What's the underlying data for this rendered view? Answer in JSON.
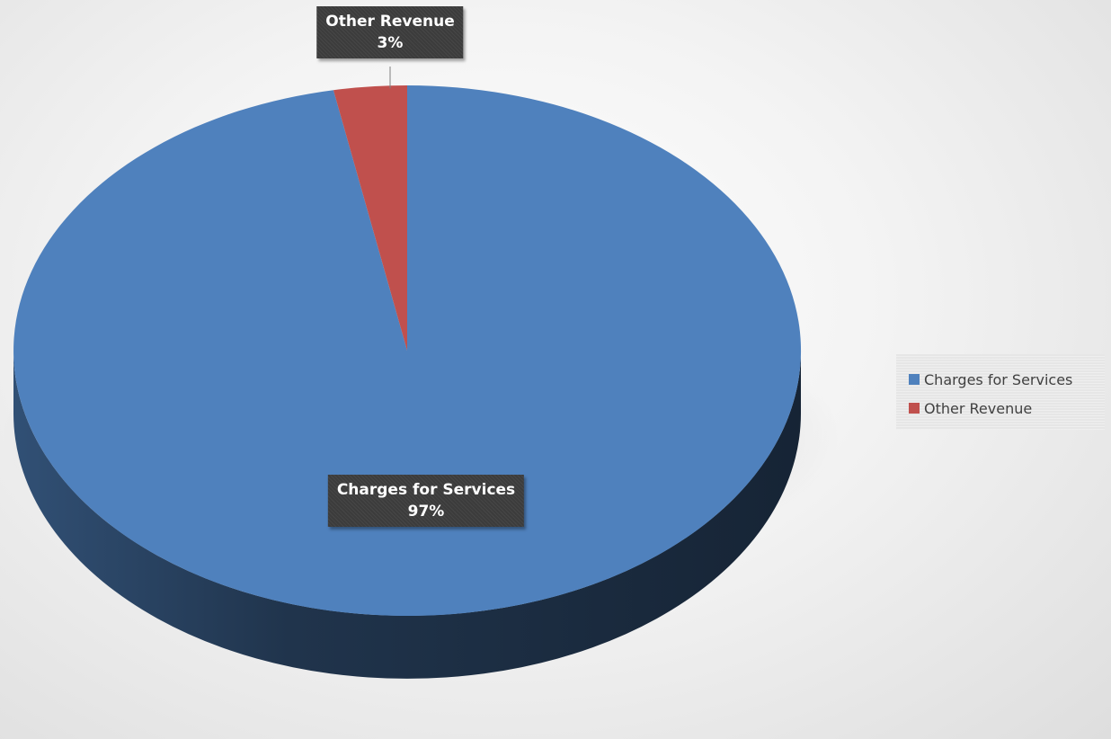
{
  "chart_data": {
    "type": "pie",
    "title": "",
    "slices": [
      {
        "name": "Charges for Services",
        "value": 97,
        "label": "97%",
        "color": "#4f81bd"
      },
      {
        "name": "Other Revenue",
        "value": 3,
        "label": "3%",
        "color": "#c0504d"
      }
    ],
    "style": "3d",
    "legend_position": "right",
    "data_labels": true
  },
  "legend": {
    "items": [
      {
        "label": "Charges for Services",
        "color": "#4f81bd"
      },
      {
        "label": "Other Revenue",
        "color": "#c0504d"
      }
    ]
  }
}
